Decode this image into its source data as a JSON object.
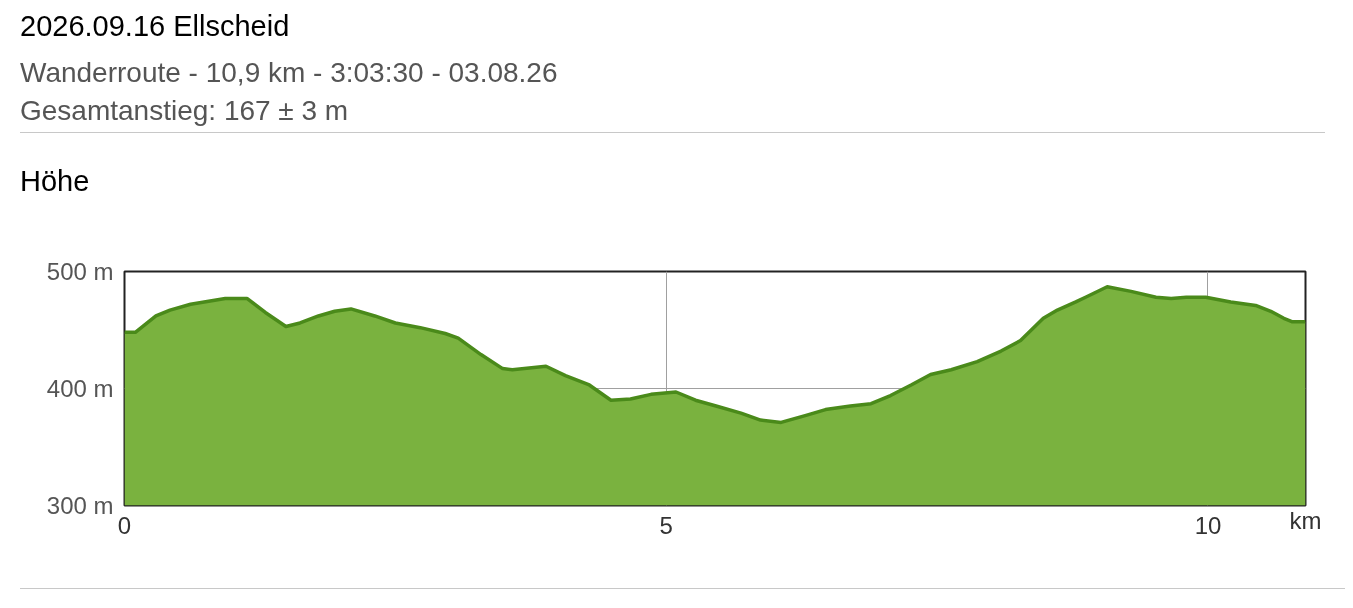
{
  "chart_data": {
    "type": "area",
    "title": "2026.09.16 Ellscheid",
    "subtitle": "Wanderroute - 10,9 km - 3:03:30 - 03.08.26\nGesamtanstieg: 167 ± 3 m",
    "ylabel": "Höhe",
    "xlabel": "km",
    "x": [
      0,
      0.1,
      0.29,
      0.42,
      0.61,
      0.93,
      1.13,
      1.3,
      1.49,
      1.62,
      1.79,
      1.94,
      2.09,
      2.31,
      2.5,
      2.73,
      2.96,
      3.08,
      3.29,
      3.49,
      3.58,
      3.89,
      4.07,
      4.29,
      4.49,
      4.67,
      4.86,
      5.09,
      5.27,
      5.46,
      5.69,
      5.87,
      6.06,
      6.29,
      6.47,
      6.7,
      6.89,
      7.07,
      7.26,
      7.44,
      7.63,
      7.87,
      8.09,
      8.27,
      8.48,
      8.61,
      8.78,
      8.87,
      9.07,
      9.29,
      9.52,
      9.66,
      9.8,
      9.98,
      10.21,
      10.44,
      10.58,
      10.7,
      10.78,
      10.9
    ],
    "series": [
      {
        "color": "#7ab23f",
        "values": [
          448,
          448,
          462,
          467,
          472,
          477,
          477,
          465,
          453,
          456,
          462,
          466,
          468,
          462,
          456,
          452,
          447,
          443,
          429,
          417,
          416,
          419,
          411,
          403,
          390,
          391,
          395,
          397,
          390,
          385,
          379,
          373,
          371,
          377,
          382,
          385,
          387,
          394,
          403,
          412,
          416,
          423,
          432,
          441,
          460,
          467,
          474,
          478,
          487,
          483,
          478,
          477,
          478,
          478,
          474,
          471,
          466,
          460,
          457,
          457
        ]
      }
    ],
    "xlim": [
      0,
      10.9
    ],
    "ylim": [
      300,
      500
    ],
    "xticks": [
      0,
      5,
      10
    ],
    "yticks": [
      {
        "value": 300,
        "label": "300 m"
      },
      {
        "value": 400,
        "label": "400 m"
      },
      {
        "value": 500,
        "label": "500 m"
      }
    ],
    "grid": true
  }
}
